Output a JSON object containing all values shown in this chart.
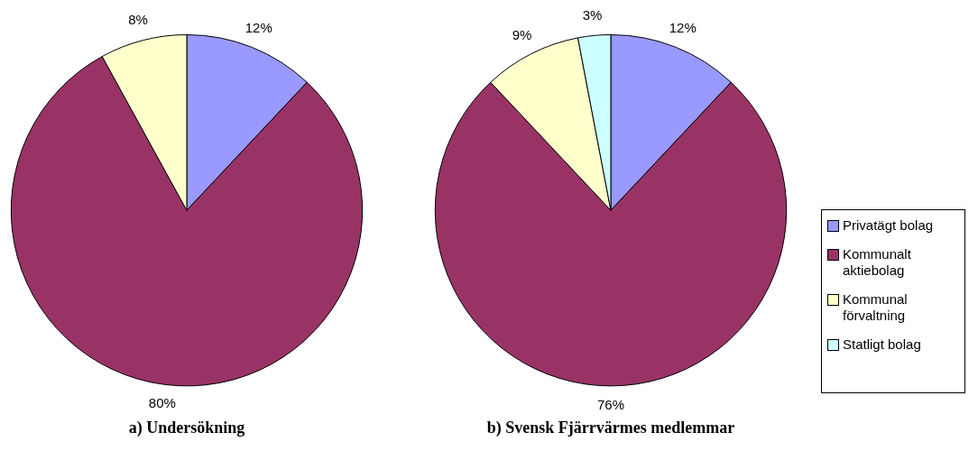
{
  "chart_data": [
    {
      "type": "pie",
      "title": "a) Undersökning",
      "categories": [
        null,
        null,
        null
      ],
      "values": [
        12,
        80,
        8
      ],
      "value_labels": [
        "12%",
        "80%",
        "8%"
      ],
      "colors": [
        "#9999ff",
        "#993366",
        "#ffffcc"
      ],
      "legend": false
    },
    {
      "type": "pie",
      "title": "b) Svensk Fjärrvärmes medlemmar",
      "categories": [
        "Privatägt bolag",
        "Kommunalt aktiebolag",
        "Kommunal förvaltning",
        "Statligt bolag"
      ],
      "values": [
        12,
        76,
        9,
        3
      ],
      "value_labels": [
        "12%",
        "76%",
        "9%",
        "3%"
      ],
      "colors": [
        "#9999ff",
        "#993366",
        "#ffffcc",
        "#ccffff"
      ],
      "legend": "right"
    }
  ]
}
